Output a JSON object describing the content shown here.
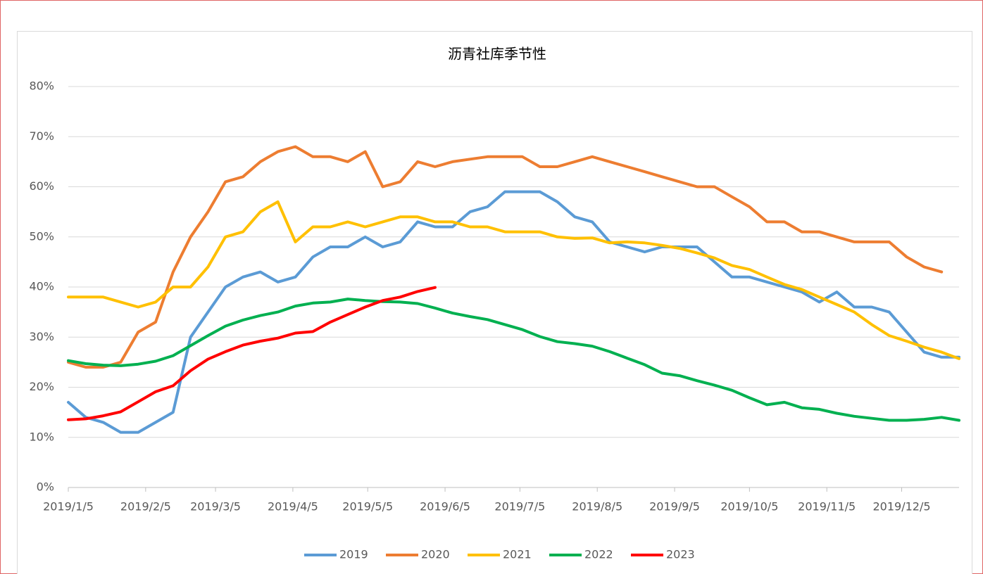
{
  "chart_data": {
    "type": "line",
    "title": "沥青社库季节性",
    "x": [
      "2019/1/5",
      "2019/1/12",
      "2019/1/19",
      "2019/1/26",
      "2019/2/2",
      "2019/2/9",
      "2019/2/16",
      "2019/2/23",
      "2019/3/2",
      "2019/3/9",
      "2019/3/16",
      "2019/3/23",
      "2019/3/30",
      "2019/4/6",
      "2019/4/13",
      "2019/4/20",
      "2019/4/27",
      "2019/5/4",
      "2019/5/11",
      "2019/5/18",
      "2019/5/25",
      "2019/6/1",
      "2019/6/8",
      "2019/6/15",
      "2019/6/22",
      "2019/6/29",
      "2019/7/6",
      "2019/7/13",
      "2019/7/20",
      "2019/7/27",
      "2019/8/3",
      "2019/8/10",
      "2019/8/17",
      "2019/8/24",
      "2019/8/31",
      "2019/9/7",
      "2019/9/14",
      "2019/9/21",
      "2019/9/28",
      "2019/10/5",
      "2019/10/12",
      "2019/10/19",
      "2019/10/26",
      "2019/11/2",
      "2019/11/9",
      "2019/11/16",
      "2019/11/23",
      "2019/11/30",
      "2019/12/7",
      "2019/12/14",
      "2019/12/21",
      "2019/12/28"
    ],
    "xlim": [
      "2019/1/5",
      "2019/12/28"
    ],
    "xticks": [
      "2019/1/5",
      "2019/2/5",
      "2019/3/5",
      "2019/4/5",
      "2019/5/5",
      "2019/6/5",
      "2019/7/5",
      "2019/8/5",
      "2019/9/5",
      "2019/10/5",
      "2019/11/5",
      "2019/12/5"
    ],
    "ylim": [
      0,
      80
    ],
    "yticks": [
      {
        "value": 0,
        "label": "0%"
      },
      {
        "value": 10,
        "label": "10%"
      },
      {
        "value": 20,
        "label": "20%"
      },
      {
        "value": 30,
        "label": "30%"
      },
      {
        "value": 40,
        "label": "40%"
      },
      {
        "value": 50,
        "label": "50%"
      },
      {
        "value": 60,
        "label": "60%"
      },
      {
        "value": 70,
        "label": "70%"
      },
      {
        "value": 80,
        "label": "80%"
      }
    ],
    "grid": true,
    "legend": "bottom",
    "series": [
      {
        "name": "2019",
        "color": "#5b9bd5",
        "values": [
          17,
          14,
          13,
          11,
          11,
          13,
          15,
          30,
          35,
          40,
          42,
          43,
          41,
          42,
          46,
          48,
          48,
          50,
          48,
          49,
          53,
          52,
          52,
          55,
          56,
          59,
          59,
          59,
          57,
          54,
          53,
          49,
          48,
          47,
          48,
          48,
          48,
          45,
          42,
          42,
          41,
          40,
          39,
          37,
          39,
          36,
          36,
          35,
          31,
          27,
          26,
          26
        ]
      },
      {
        "name": "2020",
        "color": "#ed7d31",
        "values": [
          25,
          24,
          24,
          25,
          31,
          33,
          43,
          50,
          55,
          61,
          62,
          65,
          67,
          68,
          66,
          66,
          65,
          67,
          60,
          61,
          65,
          64,
          65,
          65.5,
          66,
          66,
          66,
          64,
          64,
          65,
          66,
          65,
          64,
          63,
          62,
          61,
          60,
          60,
          58,
          56,
          53,
          53,
          51,
          51,
          50,
          49,
          49,
          49,
          46,
          44,
          43,
          null
        ]
      },
      {
        "name": "2021",
        "color": "#ffc000",
        "values": [
          38,
          38,
          38,
          37,
          36,
          37,
          40,
          40,
          44,
          50,
          51,
          55,
          57,
          49,
          52,
          52,
          53,
          52,
          53,
          54,
          54,
          53,
          53,
          52,
          52,
          51,
          51,
          51,
          50,
          49.7,
          49.8,
          48.8,
          49,
          48.8,
          48.3,
          47.7,
          46.8,
          45.8,
          44.3,
          43.5,
          42,
          40.5,
          39.5,
          38,
          36.5,
          35,
          32.5,
          30.3,
          29.2,
          28,
          27,
          25.7
        ]
      },
      {
        "name": "2022",
        "color": "#00b050",
        "values": [
          25.3,
          24.7,
          24.4,
          24.3,
          24.6,
          25.2,
          26.3,
          28.3,
          30.3,
          32.2,
          33.4,
          34.3,
          35,
          36.2,
          36.8,
          37,
          37.6,
          37.3,
          37.1,
          37,
          36.7,
          35.8,
          34.8,
          34.1,
          33.5,
          32.5,
          31.5,
          30.1,
          29.1,
          28.7,
          28.2,
          27.1,
          25.8,
          24.5,
          22.8,
          22.3,
          21.3,
          20.4,
          19.4,
          17.9,
          16.5,
          17,
          15.9,
          15.6,
          14.8,
          14.2,
          13.8,
          13.4,
          13.4,
          13.6,
          14,
          13.4
        ]
      },
      {
        "name": "2023",
        "color": "#ff0000",
        "values": [
          13.5,
          13.7,
          14.3,
          15.1,
          17.1,
          19.1,
          20.3,
          23.3,
          25.6,
          27.1,
          28.4,
          29.2,
          29.8,
          30.8,
          31.1,
          33,
          34.5,
          36,
          37.3,
          38,
          39.1,
          39.9,
          null,
          null,
          null,
          null,
          null,
          null,
          null,
          null,
          null,
          null,
          null,
          null,
          null,
          null,
          null,
          null,
          null,
          null,
          null,
          null,
          null,
          null,
          null,
          null,
          null,
          null,
          null,
          null,
          null,
          null
        ]
      }
    ]
  }
}
